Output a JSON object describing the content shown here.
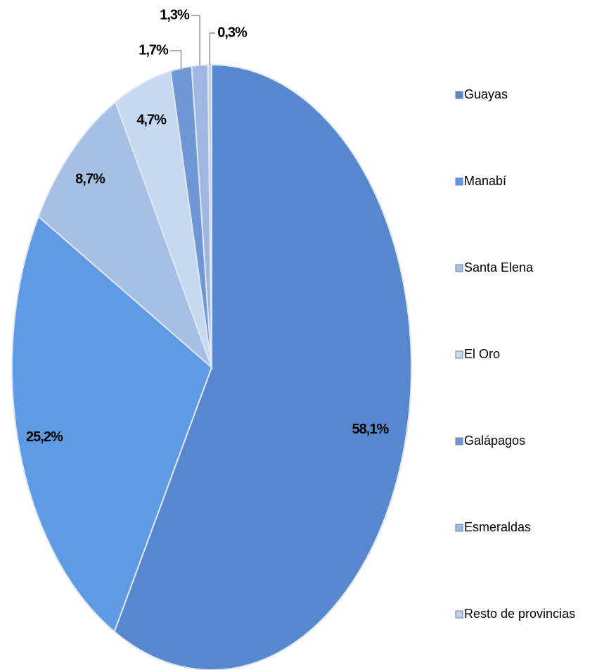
{
  "chart_data": {
    "type": "pie",
    "categories": [
      "Guayas",
      "Manabí",
      "Santa Elena",
      "El Oro",
      "Galápagos",
      "Esmeraldas",
      "Resto de provincias"
    ],
    "values": [
      58.1,
      25.2,
      8.7,
      4.7,
      1.7,
      1.3,
      0.3
    ],
    "value_labels": [
      "58,1%",
      "25,2%",
      "8,7%",
      "4,7%",
      "1,7%",
      "1,3%",
      "0,3%"
    ],
    "colors": [
      "#5787cf",
      "#5e9be4",
      "#a6bfe5",
      "#c7d9f1",
      "#6f97d6",
      "#9fb6e0",
      "#c3d0ea"
    ],
    "legend": "right"
  }
}
